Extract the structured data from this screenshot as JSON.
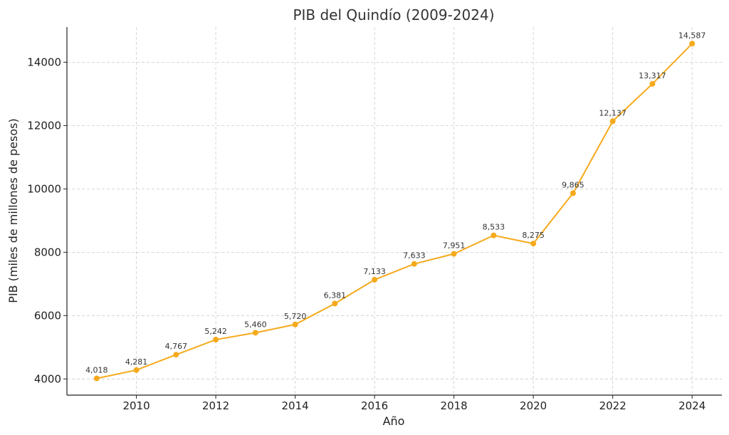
{
  "chart_data": {
    "type": "line",
    "title": "PIB del Quindío (2009-2024)",
    "xlabel": "Año",
    "ylabel": "PIB (miles de millones de pesos)",
    "x": [
      2009,
      2010,
      2011,
      2012,
      2013,
      2014,
      2015,
      2016,
      2017,
      2018,
      2019,
      2020,
      2021,
      2022,
      2023,
      2024
    ],
    "series": [
      {
        "values": [
          4018,
          4281,
          4767,
          5242,
          5460,
          5720,
          6381,
          7133,
          7633,
          7951,
          8533,
          8275,
          9865,
          12137,
          13317,
          14587
        ],
        "data_labels": [
          "4,018",
          "4,281",
          "4,767",
          "5,242",
          "5,460",
          "5,720",
          "6,381",
          "7,133",
          "7,633",
          "7,951",
          "8,533",
          "8,275",
          "9,865",
          "12,137",
          "13,317",
          "14,587"
        ],
        "color": "#f5aa1c"
      }
    ],
    "xticks": [
      2010,
      2012,
      2014,
      2016,
      2018,
      2020,
      2022,
      2024
    ],
    "xtick_labels": [
      "2010",
      "2012",
      "2014",
      "2016",
      "2018",
      "2020",
      "2022",
      "2024"
    ],
    "yticks": [
      4000,
      6000,
      8000,
      10000,
      12000,
      14000
    ],
    "ytick_labels": [
      "4000",
      "6000",
      "8000",
      "10000",
      "12000",
      "14000"
    ],
    "xlim": [
      2008.25,
      2024.75
    ],
    "ylim": [
      3490,
      15110
    ],
    "grid": true,
    "legend": "none"
  }
}
